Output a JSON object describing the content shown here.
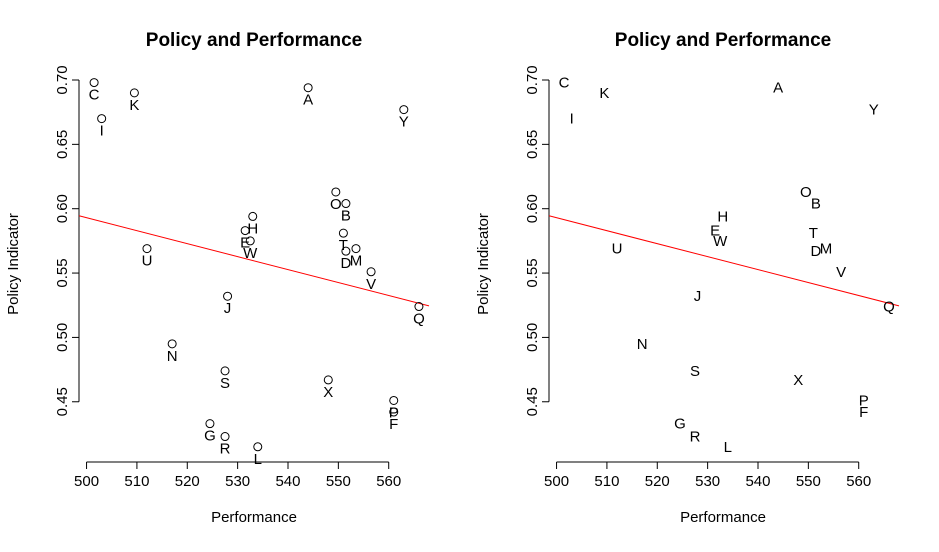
{
  "chart_data": [
    {
      "type": "scatter",
      "title": "Policy and Performance",
      "xlabel": "Performance",
      "ylabel": "Policy Indicator",
      "xlim": [
        498.5,
        568.0
      ],
      "ylim": [
        0.4133,
        0.7
      ],
      "xticks": [
        "500",
        "510",
        "520",
        "530",
        "540",
        "550",
        "560"
      ],
      "yticks": [
        "0.45",
        "0.50",
        "0.55",
        "0.60",
        "0.65",
        "0.70"
      ],
      "show_markers": true,
      "points": [
        {
          "label": "A",
          "x": 544,
          "y": 0.694
        },
        {
          "label": "B",
          "x": 551.5,
          "y": 0.604
        },
        {
          "label": "C",
          "x": 501.5,
          "y": 0.698
        },
        {
          "label": "D",
          "x": 551.5,
          "y": 0.567
        },
        {
          "label": "E",
          "x": 531.5,
          "y": 0.583
        },
        {
          "label": "F",
          "x": 561,
          "y": 0.442
        },
        {
          "label": "G",
          "x": 524.5,
          "y": 0.433
        },
        {
          "label": "H",
          "x": 533,
          "y": 0.594
        },
        {
          "label": "I",
          "x": 503,
          "y": 0.67
        },
        {
          "label": "J",
          "x": 528,
          "y": 0.532
        },
        {
          "label": "K",
          "x": 509.5,
          "y": 0.69
        },
        {
          "label": "L",
          "x": 534,
          "y": 0.415
        },
        {
          "label": "M",
          "x": 553.5,
          "y": 0.569
        },
        {
          "label": "N",
          "x": 517,
          "y": 0.495
        },
        {
          "label": "O",
          "x": 549.5,
          "y": 0.613
        },
        {
          "label": "P",
          "x": 561,
          "y": 0.451
        },
        {
          "label": "Q",
          "x": 566,
          "y": 0.524
        },
        {
          "label": "R",
          "x": 527.5,
          "y": 0.423
        },
        {
          "label": "S",
          "x": 527.5,
          "y": 0.474
        },
        {
          "label": "T",
          "x": 551,
          "y": 0.581
        },
        {
          "label": "U",
          "x": 512,
          "y": 0.569
        },
        {
          "label": "V",
          "x": 556.5,
          "y": 0.551
        },
        {
          "label": "W",
          "x": 532.5,
          "y": 0.575
        },
        {
          "label": "X",
          "x": 548,
          "y": 0.467
        },
        {
          "label": "Y",
          "x": 563,
          "y": 0.677
        }
      ],
      "fit_line": {
        "x": [
          498.5,
          568.0
        ],
        "y": [
          0.5945,
          0.5245
        ],
        "color": "#ff0000"
      }
    },
    {
      "type": "scatter",
      "title": "Policy and Performance",
      "xlabel": "Performance",
      "ylabel": "Policy Indicator",
      "xlim": [
        498.5,
        568.0
      ],
      "ylim": [
        0.4133,
        0.7
      ],
      "xticks": [
        "500",
        "510",
        "520",
        "530",
        "540",
        "550",
        "560"
      ],
      "yticks": [
        "0.45",
        "0.50",
        "0.55",
        "0.60",
        "0.65",
        "0.70"
      ],
      "show_markers": false,
      "points": [
        {
          "label": "A",
          "x": 544,
          "y": 0.694
        },
        {
          "label": "B",
          "x": 551.5,
          "y": 0.604
        },
        {
          "label": "C",
          "x": 501.5,
          "y": 0.698
        },
        {
          "label": "D",
          "x": 551.5,
          "y": 0.567
        },
        {
          "label": "E",
          "x": 531.5,
          "y": 0.583
        },
        {
          "label": "F",
          "x": 561,
          "y": 0.442
        },
        {
          "label": "G",
          "x": 524.5,
          "y": 0.433
        },
        {
          "label": "H",
          "x": 533,
          "y": 0.594
        },
        {
          "label": "I",
          "x": 503,
          "y": 0.67
        },
        {
          "label": "J",
          "x": 528,
          "y": 0.532
        },
        {
          "label": "K",
          "x": 509.5,
          "y": 0.69
        },
        {
          "label": "L",
          "x": 534,
          "y": 0.415
        },
        {
          "label": "M",
          "x": 553.5,
          "y": 0.569
        },
        {
          "label": "N",
          "x": 517,
          "y": 0.495
        },
        {
          "label": "O",
          "x": 549.5,
          "y": 0.613
        },
        {
          "label": "P",
          "x": 561,
          "y": 0.451
        },
        {
          "label": "Q",
          "x": 566,
          "y": 0.524
        },
        {
          "label": "R",
          "x": 527.5,
          "y": 0.423
        },
        {
          "label": "S",
          "x": 527.5,
          "y": 0.474
        },
        {
          "label": "T",
          "x": 551,
          "y": 0.581
        },
        {
          "label": "U",
          "x": 512,
          "y": 0.569
        },
        {
          "label": "V",
          "x": 556.5,
          "y": 0.551
        },
        {
          "label": "W",
          "x": 532.5,
          "y": 0.575
        },
        {
          "label": "X",
          "x": 548,
          "y": 0.467
        },
        {
          "label": "Y",
          "x": 563,
          "y": 0.677
        }
      ],
      "fit_line": {
        "x": [
          498.5,
          568.0
        ],
        "y": [
          0.5945,
          0.5245
        ],
        "color": "#ff0000"
      }
    }
  ]
}
